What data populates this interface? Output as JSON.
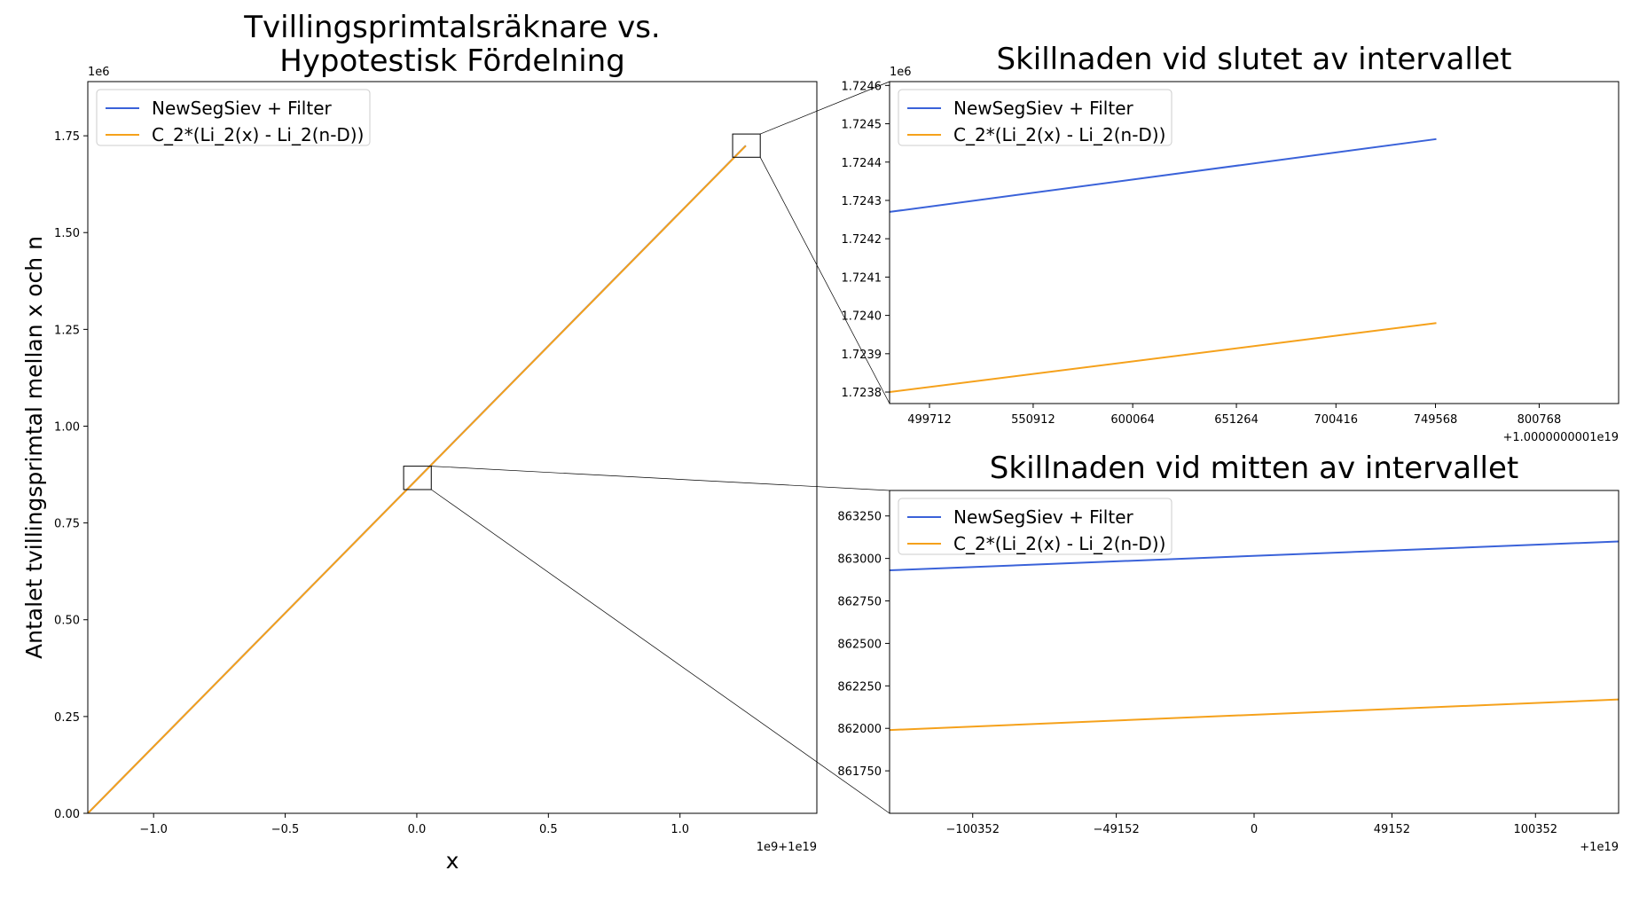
{
  "colors": {
    "series_blue": "#3a62d9",
    "series_orange": "#f5a11b",
    "axes": "#000000",
    "legend_border": "#cccccc"
  },
  "chart_data": [
    {
      "type": "line",
      "title": "Tvillingsprimtalsräknare vs.\nHypotestisk Fördelning",
      "title_lines": [
        "Tvillingsprimtalsräknare vs.",
        "Hypotestisk Fördelning"
      ],
      "xlabel": "x",
      "ylabel": "Antalet tvillingsprimtal mellan x och n",
      "x_offset_text": "1e9+1e19",
      "y_offset_text": "1e6",
      "xlim": [
        -1.25,
        1.52
      ],
      "ylim": [
        0,
        1.89
      ],
      "xticks": [
        -1.0,
        -0.5,
        0.0,
        0.5,
        1.0
      ],
      "xtick_labels": [
        "−1.0",
        "−0.5",
        "0.0",
        "0.5",
        "1.0"
      ],
      "yticks": [
        0.0,
        0.25,
        0.5,
        0.75,
        1.0,
        1.25,
        1.5,
        1.75
      ],
      "ytick_labels": [
        "0.00",
        "0.25",
        "0.50",
        "0.75",
        "1.00",
        "1.25",
        "1.50",
        "1.75"
      ],
      "legend_loc": "upper left",
      "grid": false,
      "series": [
        {
          "name": "NewSegSiev + Filter",
          "color": "#3a62d9",
          "x": [
            -1.25,
            1.25
          ],
          "y": [
            0.0,
            1.7246
          ]
        },
        {
          "name": "C_2*(Li_2(x) - Li_2(n-D))",
          "color": "#f5a11b",
          "x": [
            -1.25,
            1.25
          ],
          "y": [
            0.0,
            1.724
          ]
        }
      ],
      "zoom_boxes": [
        {
          "target": "end",
          "xlim": [
            1.2,
            1.305
          ],
          "ylim": [
            1.6946,
            1.7546
          ]
        },
        {
          "target": "middle",
          "xlim": [
            -0.05,
            0.055
          ],
          "ylim": [
            0.8362,
            0.8966
          ]
        }
      ]
    },
    {
      "type": "line",
      "title": "Skillnaden vid slutet av intervallet",
      "xlabel": "",
      "ylabel": "",
      "x_offset_text": "+1.0000000001e19",
      "y_offset_text": "1e6",
      "xlim": [
        480000,
        840000
      ],
      "ylim": [
        1.72377,
        1.72461
      ],
      "xticks": [
        499712,
        550912,
        600064,
        651264,
        700416,
        749568,
        800768
      ],
      "xtick_labels": [
        "499712",
        "550912",
        "600064",
        "651264",
        "700416",
        "749568",
        "800768"
      ],
      "yticks": [
        1.7238,
        1.7239,
        1.724,
        1.7241,
        1.7242,
        1.7243,
        1.7244,
        1.7245,
        1.7246
      ],
      "ytick_labels": [
        "1.7238",
        "1.7239",
        "1.7240",
        "1.7241",
        "1.7242",
        "1.7243",
        "1.7244",
        "1.7245",
        "1.7246"
      ],
      "legend_loc": "upper left",
      "grid": false,
      "series": [
        {
          "name": "NewSegSiev + Filter",
          "color": "#3a62d9",
          "x": [
            480000,
            750000
          ],
          "y": [
            1.72427,
            1.72446
          ]
        },
        {
          "name": "C_2*(Li_2(x) - Li_2(n-D))",
          "color": "#f5a11b",
          "x": [
            480000,
            750000
          ],
          "y": [
            1.7238,
            1.72398
          ]
        }
      ]
    },
    {
      "type": "line",
      "title": "Skillnaden vid mitten av intervallet",
      "xlabel": "",
      "ylabel": "",
      "x_offset_text": "+1e19",
      "y_offset_text": "",
      "xlim": [
        -130000,
        130000
      ],
      "ylim": [
        861500,
        863400
      ],
      "xticks": [
        -100352,
        -49152,
        0,
        49152,
        100352
      ],
      "xtick_labels": [
        "−100352",
        "−49152",
        "0",
        "49152",
        "100352"
      ],
      "yticks": [
        861750,
        862000,
        862250,
        862500,
        862750,
        863000,
        863250
      ],
      "ytick_labels": [
        "861750",
        "862000",
        "862250",
        "862500",
        "862750",
        "863000",
        "863250"
      ],
      "legend_loc": "upper left",
      "grid": false,
      "series": [
        {
          "name": "NewSegSiev + Filter",
          "color": "#3a62d9",
          "x": [
            -130000,
            130000
          ],
          "y": [
            862930,
            863100
          ]
        },
        {
          "name": "C_2*(Li_2(x) - Li_2(n-D))",
          "color": "#f5a11b",
          "x": [
            -130000,
            130000
          ],
          "y": [
            861990,
            862170
          ]
        }
      ]
    }
  ]
}
